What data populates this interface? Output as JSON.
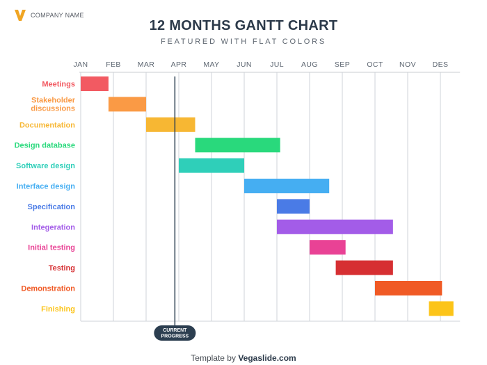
{
  "brand": {
    "company_name": "COMPANY NAME",
    "logo_colors": [
      "#f0a524",
      "#e0801a"
    ]
  },
  "header": {
    "title": "12 MONTHS GANTT CHART",
    "subtitle": "FEATURED WITH FLAT COLORS"
  },
  "footer": {
    "prefix": "Template by ",
    "brand": "Vegaslide.com"
  },
  "chart_data": {
    "type": "gantt",
    "months": [
      "JAN",
      "FEB",
      "MAR",
      "APR",
      "MAY",
      "JUN",
      "JUL",
      "AUG",
      "SEP",
      "OCT",
      "NOV",
      "DES"
    ],
    "grid": true,
    "tasks": [
      {
        "label": "Meetings",
        "start": 0.0,
        "end": 0.85,
        "color": "#f25a62"
      },
      {
        "label": "Stakeholder discussions",
        "start": 0.85,
        "end": 2.0,
        "color": "#fa9a45"
      },
      {
        "label": "Documentation",
        "start": 2.0,
        "end": 3.5,
        "color": "#f7b733"
      },
      {
        "label": "Design database",
        "start": 3.5,
        "end": 6.1,
        "color": "#29d97c"
      },
      {
        "label": "Software design",
        "start": 3.0,
        "end": 5.0,
        "color": "#2fcfb9"
      },
      {
        "label": "Interface design",
        "start": 5.0,
        "end": 7.6,
        "color": "#45aef2"
      },
      {
        "label": "Specification",
        "start": 6.0,
        "end": 7.0,
        "color": "#4a7be6"
      },
      {
        "label": "Integeration",
        "start": 6.0,
        "end": 9.55,
        "color": "#a35ce8"
      },
      {
        "label": "Initial testing",
        "start": 7.0,
        "end": 8.1,
        "color": "#e94295"
      },
      {
        "label": "Testing",
        "start": 7.8,
        "end": 9.55,
        "color": "#d62f32"
      },
      {
        "label": "Demonstration",
        "start": 9.0,
        "end": 11.05,
        "color": "#f05a25"
      },
      {
        "label": "Finishing",
        "start": 10.65,
        "end": 11.4,
        "color": "#fcc419"
      }
    ],
    "current_progress": {
      "label_lines": [
        "CURRENT",
        "PROGRESS"
      ],
      "position": 2.88,
      "color": "#2c3e50"
    }
  }
}
